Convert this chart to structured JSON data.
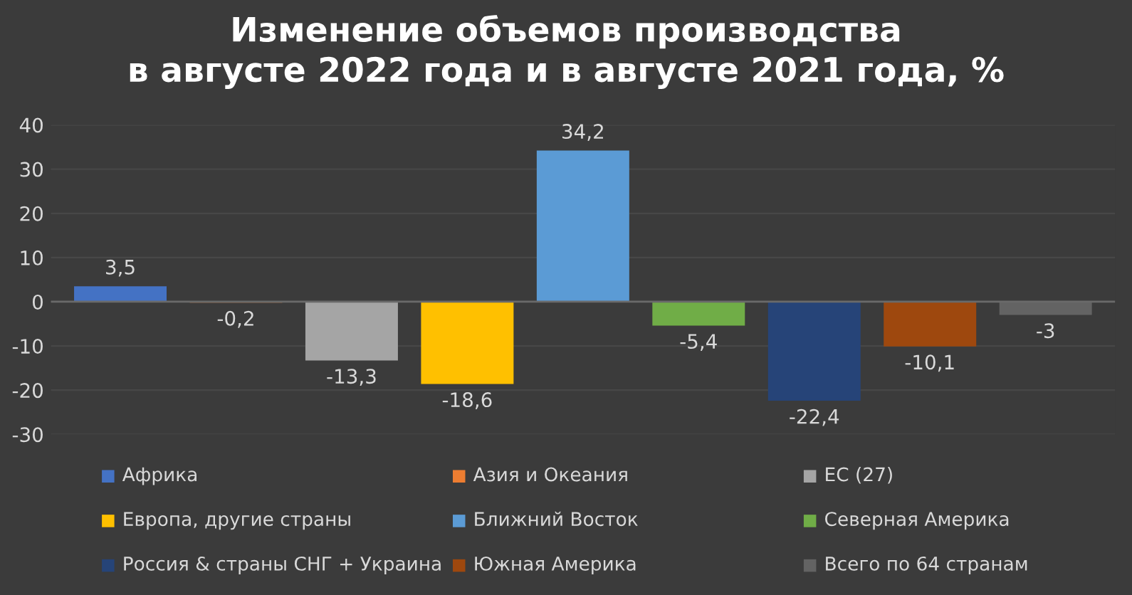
{
  "chart_data": {
    "type": "bar",
    "title": "Изменение объемов производства\nв августе 2022 года и в августе 2021 года, %",
    "categories": [
      null,
      null,
      null,
      null,
      null,
      null,
      null,
      null,
      null
    ],
    "series": [
      {
        "name": "Африка",
        "color": "#4472c4",
        "values": [
          3.5,
          null,
          null,
          null,
          null,
          null,
          null,
          null,
          null
        ],
        "value_labels": [
          "3,5",
          null,
          null,
          null,
          null,
          null,
          null,
          null,
          null
        ]
      },
      {
        "name": "Азия и Океания",
        "color": "#ed7d31",
        "values": [
          null,
          -0.2,
          null,
          null,
          null,
          null,
          null,
          null,
          null
        ],
        "value_labels": [
          null,
          "-0,2",
          null,
          null,
          null,
          null,
          null,
          null,
          null
        ]
      },
      {
        "name": "ЕС (27)",
        "color": "#a5a5a5",
        "values": [
          null,
          null,
          -13.3,
          null,
          null,
          null,
          null,
          null,
          null
        ],
        "value_labels": [
          null,
          null,
          "-13,3",
          null,
          null,
          null,
          null,
          null,
          null
        ]
      },
      {
        "name": "Европа, другие страны",
        "color": "#ffc000",
        "values": [
          null,
          null,
          null,
          -18.6,
          null,
          null,
          null,
          null,
          null
        ],
        "value_labels": [
          null,
          null,
          null,
          "-18,6",
          null,
          null,
          null,
          null,
          null
        ]
      },
      {
        "name": "Ближний Восток",
        "color": "#5b9bd5",
        "values": [
          null,
          null,
          null,
          null,
          34.2,
          null,
          null,
          null,
          null
        ],
        "value_labels": [
          null,
          null,
          null,
          null,
          "34,2",
          null,
          null,
          null,
          null
        ]
      },
      {
        "name": "Северная Америка",
        "color": "#70ad47",
        "values": [
          null,
          null,
          null,
          null,
          null,
          -5.4,
          null,
          null,
          null
        ],
        "value_labels": [
          null,
          null,
          null,
          null,
          null,
          "-5,4",
          null,
          null,
          null
        ]
      },
      {
        "name": "Россия & страны СНГ + Украина",
        "color": "#264478",
        "values": [
          null,
          null,
          null,
          null,
          null,
          null,
          -22.4,
          null,
          null
        ],
        "value_labels": [
          null,
          null,
          null,
          null,
          null,
          null,
          "-22,4",
          null,
          null
        ]
      },
      {
        "name": "Южная Америка",
        "color": "#9e480e",
        "values": [
          null,
          null,
          null,
          null,
          null,
          null,
          null,
          -10.1,
          null
        ],
        "value_labels": [
          null,
          null,
          null,
          null,
          null,
          null,
          null,
          "-10,1",
          null
        ]
      },
      {
        "name": "Всего по 64 странам",
        "color": "#636363",
        "values": [
          null,
          null,
          null,
          null,
          null,
          null,
          null,
          null,
          -3
        ],
        "value_labels": [
          null,
          null,
          null,
          null,
          null,
          null,
          null,
          null,
          "-3"
        ]
      }
    ],
    "ylim": [
      -30,
      40
    ],
    "yticks": [
      -30,
      -20,
      -10,
      0,
      10,
      20,
      30,
      40
    ],
    "tick_labels": "y",
    "grid": "y",
    "legend": "bottom"
  }
}
